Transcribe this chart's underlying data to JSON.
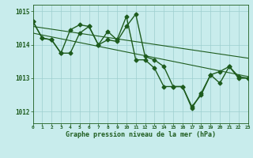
{
  "line_jagged": {
    "x": [
      0,
      1,
      2,
      3,
      4,
      5,
      6,
      7,
      8,
      9,
      10,
      11,
      12,
      13,
      14,
      15,
      16,
      17,
      18,
      19,
      20,
      21,
      22,
      23
    ],
    "y": [
      1014.7,
      1014.2,
      1014.15,
      1013.75,
      1013.75,
      1014.35,
      1014.55,
      1014.0,
      1014.4,
      1014.15,
      1014.85,
      1013.55,
      1013.55,
      1013.3,
      1012.75,
      1012.75,
      1012.75,
      1012.15,
      1012.5,
      1013.1,
      1012.85,
      1013.35,
      1013.05,
      1013.0
    ]
  },
  "line_upper": {
    "x": [
      0,
      1,
      2,
      3,
      4,
      5,
      6,
      7,
      8,
      9,
      10,
      11,
      12,
      13,
      14,
      15,
      16,
      17,
      18,
      19,
      20,
      21,
      22,
      23
    ],
    "y": [
      1014.7,
      1014.2,
      1014.15,
      1013.75,
      1014.45,
      1014.6,
      1014.55,
      1014.0,
      1014.15,
      1014.1,
      1014.55,
      1014.92,
      1013.65,
      1013.55,
      1013.35,
      1012.75,
      1012.75,
      1012.1,
      1012.55,
      1013.1,
      1013.2,
      1013.35,
      1013.0,
      1013.0
    ]
  },
  "trend1": {
    "x": [
      0,
      23
    ],
    "y": [
      1014.55,
      1013.6
    ]
  },
  "trend2": {
    "x": [
      0,
      23
    ],
    "y": [
      1014.35,
      1013.05
    ]
  },
  "line_color": "#1e5c1e",
  "bg_color": "#c8ecec",
  "grid_color": "#9dcfcf",
  "xlabel": "Graphe pression niveau de la mer (hPa)",
  "xlim": [
    0,
    23
  ],
  "ylim": [
    1011.65,
    1015.2
  ],
  "yticks": [
    1012,
    1013,
    1014,
    1015
  ],
  "xticks": [
    0,
    1,
    2,
    3,
    4,
    5,
    6,
    7,
    8,
    9,
    10,
    11,
    12,
    13,
    14,
    15,
    16,
    17,
    18,
    19,
    20,
    21,
    22,
    23
  ],
  "marker": "D",
  "markersize": 2.5,
  "linewidth": 1.0,
  "trend_linewidth": 0.8
}
